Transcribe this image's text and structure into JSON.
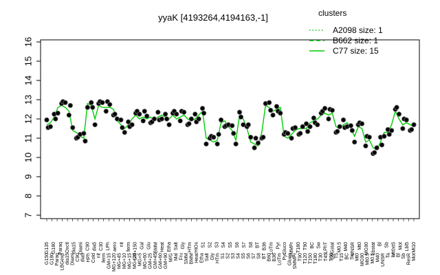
{
  "chart_data": {
    "type": "line",
    "title": "yyaK [4193264,4194163,-1]",
    "xlabel": "",
    "ylabel": "",
    "ylim": [
      7,
      16
    ],
    "yticks": [
      7,
      8,
      9,
      10,
      11,
      12,
      13,
      14,
      15,
      16
    ],
    "grid": false,
    "legend": {
      "title": "clusters",
      "placement": "top-right",
      "entries": [
        {
          "label": "A2098 size: 1",
          "style": "dotted",
          "color": "#00cc00"
        },
        {
          "label": "B662 size: 1",
          "style": "dashed",
          "color": "#00cc00"
        },
        {
          "label": "C77 size: 15",
          "style": "solid",
          "color": "#00cc00"
        }
      ]
    },
    "x_tick_labels": {
      "row1": [
        "G150",
        "G180",
        "Paraq",
        "LBGexp",
        "dia15",
        "Diami",
        "C90",
        "dia5",
        "HPh",
        "Cold",
        "nit",
        "ferm",
        "GM+15",
        "MG+120",
        "MG+45",
        "MG+10",
        "MG+15",
        "MG+25",
        "MG+5",
        "MG+60",
        "GM+25",
        "GM+45",
        "GM+60",
        "GM+90",
        "M/G",
        "Mal",
        "Fru",
        "SMM",
        "BMM",
        "Heat",
        "Etha",
        "Salt",
        "Gly",
        "HTm",
        "S1",
        "S2",
        "S3",
        "S4",
        "S5",
        "S6",
        "S7",
        "S8",
        "BT",
        "B60",
        "B36",
        "LoTm",
        "Pyr",
        "Gluco",
        "SMMPr",
        "T90",
        "T120",
        "T150",
        "T180",
        "T30",
        "T45",
        "T60",
        "T5",
        "T15",
        "BC",
        "Sw",
        "Mt0",
        "MG90",
        "Mt0.5",
        "M0.5",
        "M40",
        "UNSR",
        "Ta",
        "Lr",
        "Bl",
        "Sb",
        "ResR",
        "Mot"
      ],
      "row2": [
        "G135",
        "G180",
        "Paraq",
        "Oxctl",
        "dia15",
        "Diami",
        "C90",
        "dia5",
        "C30",
        "LPh",
        "aero",
        "nit",
        "ferm",
        "GM+150",
        "Gal",
        "Glu",
        "BMM",
        "Heat",
        "Etha",
        "Salt",
        "Gly",
        "HTm",
        "HiOs",
        "S1",
        "S2",
        "S3",
        "S4",
        "S5",
        "S6",
        "S7",
        "S8",
        "BT",
        "B36",
        "LoTm",
        "Pyr",
        "Gluco",
        "SMMPr",
        "T180",
        "T90",
        "BC",
        "Sw",
        "LPhT",
        "LBGstat",
        "M0.5",
        "M40",
        "UNSR",
        "Mt0",
        "MG90",
        "Lbstat",
        "Bl",
        "Sb",
        "Mt0xt5",
        "Mot",
        "Lbl5",
        "Mt10"
      ]
    },
    "series": [
      {
        "style": "solid",
        "color": "#00cc00",
        "values": [
          11.7,
          11.8,
          12.1,
          12.6,
          12.7,
          12.6,
          12.4,
          11.4,
          11.3,
          11.1,
          11.0,
          12.8,
          12.7,
          12.0,
          12.7,
          12.6,
          12.6,
          12.6,
          12.5,
          11.9,
          11.7,
          11.5,
          11.7,
          12.0,
          12.2,
          12.0,
          12.1,
          12.0,
          12.1,
          11.9,
          12.1,
          12.2,
          12.1,
          12.0,
          12.2,
          12.0,
          12.1,
          12.2,
          12.0,
          11.9,
          12.0,
          12.2,
          12.4,
          11.0,
          10.9,
          10.8,
          10.9,
          11.8,
          11.9,
          11.6,
          11.4,
          10.9,
          12.2,
          12.0,
          11.5,
          10.8,
          10.7,
          10.6,
          11.3,
          12.7,
          12.6,
          12.4,
          12.5,
          12.6,
          11.1,
          11.0,
          11.2,
          11.4,
          11.5,
          11.5,
          11.5,
          11.8,
          11.9,
          12.0,
          12.2,
          12.3,
          12.2,
          12.3,
          11.6,
          11.5,
          11.7,
          11.8,
          11.5,
          11.1,
          11.6,
          11.5,
          10.8,
          10.9,
          10.5,
          10.4,
          10.8,
          11.3,
          11.3,
          11.7,
          12.4,
          12.0,
          11.7,
          11.8,
          11.7,
          11.6
        ]
      }
    ],
    "points_per_category": 3
  }
}
